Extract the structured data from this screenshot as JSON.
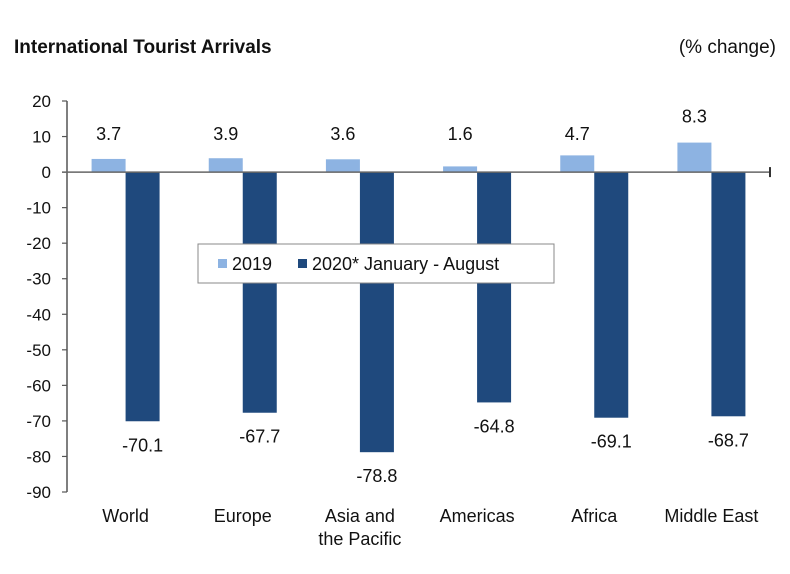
{
  "chart_data": {
    "type": "bar",
    "title": "International Tourist Arrivals",
    "unit_label": "(% change)",
    "xlabel": "",
    "ylabel": "",
    "ylim": [
      -90,
      20
    ],
    "yticks": [
      20,
      10,
      0,
      -10,
      -20,
      -30,
      -40,
      -50,
      -60,
      -70,
      -80,
      -90
    ],
    "grid": false,
    "legend_position": "center",
    "categories": [
      [
        "World"
      ],
      [
        "Europe"
      ],
      [
        "Asia and",
        "the Pacific"
      ],
      [
        "Americas"
      ],
      [
        "Africa"
      ],
      [
        "Middle East"
      ]
    ],
    "series": [
      {
        "name": "2019",
        "color": "#8DB3E2",
        "values": [
          3.7,
          3.9,
          3.6,
          1.6,
          4.7,
          8.3
        ],
        "labels": [
          "3.7",
          "3.9",
          "3.6",
          "1.6",
          "4.7",
          "8.3"
        ]
      },
      {
        "name": "2020* January - August",
        "color": "#1F497D",
        "values": [
          -70.1,
          -67.7,
          -78.8,
          -64.8,
          -69.1,
          -68.7
        ],
        "labels": [
          "-70.1",
          "-67.7",
          "-78.8",
          "-64.8",
          "-69.1",
          "-68.7"
        ]
      }
    ]
  }
}
